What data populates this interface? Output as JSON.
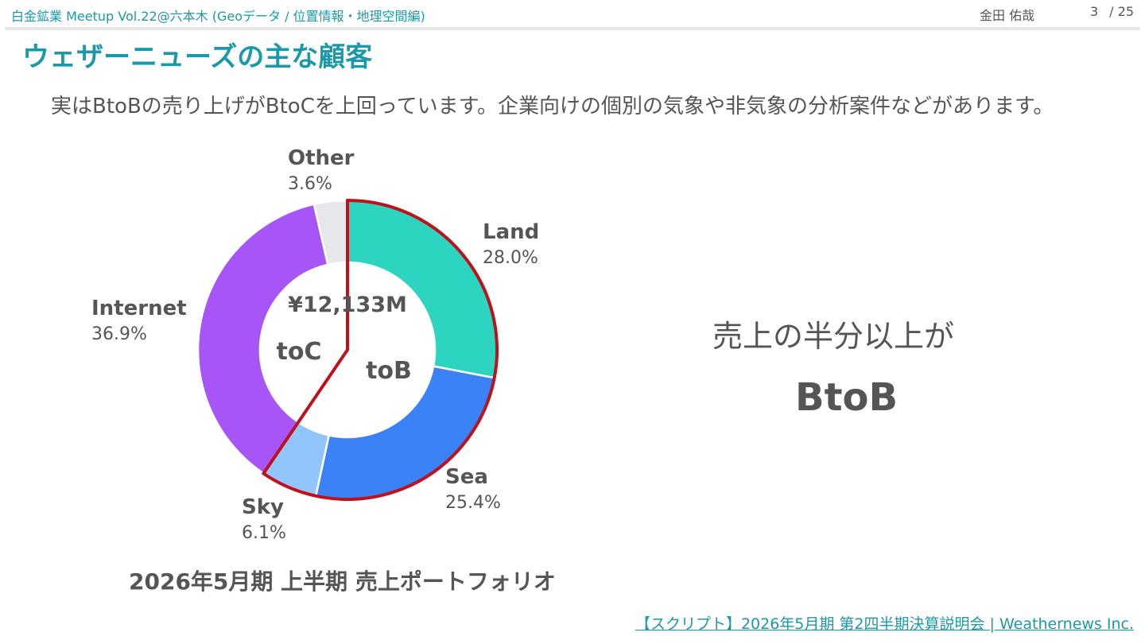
{
  "header": {
    "event": "白金鉱業 Meetup Vol.22@六本木 (Geoデータ / 位置情報・地理空間編)",
    "author": "金田 佑哉",
    "page_current": "3",
    "page_total": "/ 25"
  },
  "slide": {
    "title": "ウェザーニューズの主な顧客",
    "description": "実はBtoBの売り上げがBtoCを上回っています。企業向けの個別の気象や非気象の分析案件などがあります。",
    "side_text": "売上の半分以上が",
    "side_emphasis": "BtoB",
    "source_link": "【スクリプト】2026年5月期 第2四半期決算説明会 | Weathernews Inc."
  },
  "chart_data": {
    "type": "pie",
    "title": "2026年5月期 上半期 売上ポートフォリオ",
    "center_label": "¥12,133M",
    "slices": [
      {
        "name": "Land",
        "value": 28.0,
        "label": "28.0%",
        "color": "#2dd4bf"
      },
      {
        "name": "Sea",
        "value": 25.4,
        "label": "25.4%",
        "color": "#3b82f6"
      },
      {
        "name": "Sky",
        "value": 6.1,
        "label": "6.1%",
        "color": "#93c5fd"
      },
      {
        "name": "Internet",
        "value": 36.9,
        "label": "36.9%",
        "color": "#a855f7"
      },
      {
        "name": "Other",
        "value": 3.6,
        "label": "3.6%",
        "color": "#e5e7eb"
      }
    ],
    "groups": [
      {
        "name": "toB",
        "members": [
          "Land",
          "Sea",
          "Sky"
        ],
        "outline_color": "#c0111a"
      },
      {
        "name": "toC",
        "members": [
          "Internet",
          "Other"
        ]
      }
    ]
  }
}
